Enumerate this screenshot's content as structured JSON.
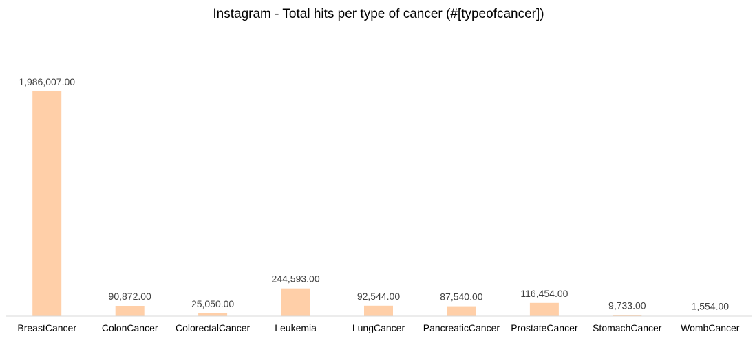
{
  "chart_data": {
    "type": "bar",
    "title": "Instagram - Total hits per type of cancer (#[typeofcancer])",
    "categories": [
      "BreastCancer",
      "ColonCancer",
      "ColorectalCancer",
      "Leukemia",
      "LungCancer",
      "PancreaticCancer",
      "ProstateCancer",
      "StomachCancer",
      "WombCancer"
    ],
    "values": [
      1986007,
      90872,
      25050,
      244593,
      92544,
      87540,
      116454,
      9733,
      1554
    ],
    "data_labels": [
      "1,986,007.00",
      "90,872.00",
      "25,050.00",
      "244,593.00",
      "92,544.00",
      "87,540.00",
      "116,454.00",
      "9,733.00",
      "1,554.00"
    ],
    "xlabel": "",
    "ylabel": "",
    "ylim": [
      0,
      1986007
    ],
    "grid": false,
    "legend": "none",
    "bar_color": "#ffcfa8",
    "axis_color": "#d9d9d9"
  }
}
